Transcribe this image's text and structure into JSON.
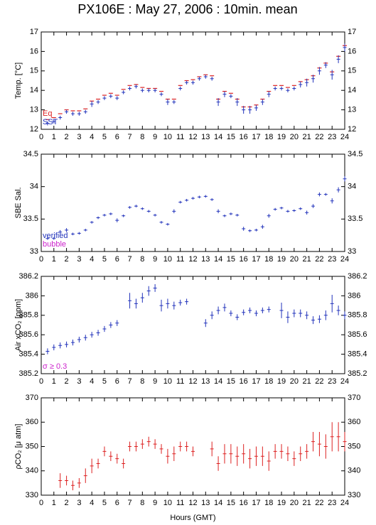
{
  "chart_data": [
    {
      "type": "errorbar",
      "title": "PX106E : May 27, 2006 : 10min. mean",
      "ylabel": "Temp. [°C]",
      "x": [
        0.5,
        1,
        1.5,
        2,
        2.5,
        3,
        3.5,
        4,
        4.5,
        5,
        5.5,
        6,
        6.5,
        7,
        7.5,
        8,
        8.5,
        9,
        9.5,
        10,
        10.5,
        11,
        11.5,
        12,
        12.5,
        13,
        13.5,
        14,
        14.5,
        15,
        15.5,
        16,
        16.5,
        17,
        17.5,
        18,
        18.5,
        19,
        19.5,
        20,
        20.5,
        21,
        21.5,
        22,
        22.5,
        23,
        23.5,
        24
      ],
      "series": [
        {
          "name": "Eq",
          "color": "#dd2222",
          "values": [
            12.5,
            12.6,
            12.8,
            13.0,
            12.95,
            12.95,
            13.05,
            13.45,
            13.55,
            13.75,
            13.85,
            13.75,
            14.05,
            14.25,
            14.3,
            14.15,
            14.1,
            14.1,
            13.95,
            13.55,
            13.55,
            14.25,
            14.5,
            14.55,
            14.7,
            14.8,
            14.75,
            13.55,
            13.95,
            13.85,
            13.55,
            13.15,
            13.15,
            13.25,
            13.55,
            13.95,
            14.25,
            14.25,
            14.15,
            14.25,
            14.45,
            14.55,
            14.75,
            15.15,
            15.4,
            14.95,
            15.75,
            16.3
          ]
        },
        {
          "name": "SST",
          "color": "#2233bb",
          "values": [
            12.3,
            12.4,
            12.6,
            12.9,
            12.8,
            12.8,
            12.9,
            13.3,
            13.4,
            13.6,
            13.7,
            13.6,
            13.9,
            14.1,
            14.2,
            14.0,
            14.0,
            14.0,
            13.8,
            13.4,
            13.4,
            14.1,
            14.4,
            14.4,
            14.6,
            14.7,
            14.6,
            13.4,
            13.8,
            13.7,
            13.4,
            13.0,
            13.0,
            13.1,
            13.4,
            13.8,
            14.1,
            14.1,
            14.0,
            14.1,
            14.3,
            14.4,
            14.6,
            15.0,
            15.3,
            14.8,
            15.6,
            16.2
          ],
          "errors": [
            0.1,
            0.1,
            0.1,
            0.1,
            0.1,
            0.1,
            0.1,
            0.15,
            0.1,
            0.1,
            0.1,
            0.1,
            0.1,
            0.1,
            0.1,
            0.1,
            0.1,
            0.1,
            0.1,
            0.15,
            0.1,
            0.1,
            0.1,
            0.1,
            0.1,
            0.1,
            0.1,
            0.2,
            0.15,
            0.1,
            0.2,
            0.2,
            0.2,
            0.15,
            0.15,
            0.15,
            0.1,
            0.1,
            0.1,
            0.1,
            0.15,
            0.2,
            0.2,
            0.2,
            0.15,
            0.25,
            0.2,
            0.2
          ]
        }
      ],
      "xlim": [
        0,
        24
      ],
      "xticks": [
        0,
        1,
        2,
        3,
        4,
        5,
        6,
        7,
        8,
        9,
        10,
        11,
        12,
        13,
        14,
        15,
        16,
        17,
        18,
        19,
        20,
        21,
        22,
        23,
        24
      ],
      "ylim": [
        12,
        17
      ],
      "yticks": [
        12,
        13,
        14,
        15,
        16,
        17
      ]
    },
    {
      "type": "errorbar",
      "ylabel": "SBE Sal.",
      "x": [
        0.5,
        1,
        1.5,
        2,
        2.5,
        3,
        3.5,
        4,
        4.5,
        5,
        5.5,
        6,
        6.5,
        7,
        7.5,
        8,
        8.5,
        9,
        9.5,
        10,
        10.5,
        11,
        11.5,
        12,
        12.5,
        13,
        13.5,
        14,
        14.5,
        15,
        15.5,
        16,
        16.5,
        17,
        17.5,
        18,
        18.5,
        19,
        19.5,
        20,
        20.5,
        21,
        21.5,
        22,
        22.5,
        23,
        23.5,
        24
      ],
      "series": [
        {
          "name": "verified",
          "color": "#2233bb",
          "values": [
            33.2,
            33.2,
            33.3,
            33.33,
            33.27,
            33.28,
            33.33,
            33.45,
            33.52,
            33.56,
            33.58,
            33.48,
            33.55,
            33.68,
            33.7,
            33.66,
            33.62,
            33.56,
            33.45,
            33.42,
            33.62,
            33.76,
            33.79,
            33.82,
            33.84,
            33.85,
            33.8,
            33.62,
            33.55,
            33.58,
            33.56,
            33.35,
            33.32,
            33.33,
            33.38,
            33.55,
            33.65,
            33.67,
            33.62,
            33.63,
            33.66,
            33.6,
            33.7,
            33.88,
            33.88,
            33.78,
            33.95,
            34.12
          ],
          "errors": [
            0.02,
            0.02,
            0.03,
            0.03,
            0.02,
            0.02,
            0.02,
            0.02,
            0.02,
            0.02,
            0.02,
            0.03,
            0.02,
            0.02,
            0.02,
            0.02,
            0.02,
            0.02,
            0.02,
            0.02,
            0.03,
            0.02,
            0.02,
            0.02,
            0.02,
            0.02,
            0.02,
            0.03,
            0.02,
            0.02,
            0.02,
            0.03,
            0.02,
            0.02,
            0.03,
            0.03,
            0.02,
            0.02,
            0.02,
            0.02,
            0.02,
            0.03,
            0.03,
            0.03,
            0.02,
            0.04,
            0.04,
            0.04
          ]
        }
      ],
      "annotations": [
        {
          "text": "bubble",
          "color": "#cc22cc"
        }
      ],
      "xlim": [
        0,
        24
      ],
      "xticks": [
        0,
        1,
        2,
        3,
        4,
        5,
        6,
        7,
        8,
        9,
        10,
        11,
        12,
        13,
        14,
        15,
        16,
        17,
        18,
        19,
        20,
        21,
        22,
        23,
        24
      ],
      "ylim": [
        33,
        34.5
      ],
      "yticks": [
        33,
        33.5,
        34,
        34.5
      ]
    },
    {
      "type": "errorbar",
      "ylabel": "Air xCO₂ [ppm]",
      "x": [
        0.5,
        1,
        1.5,
        2,
        2.5,
        3,
        3.5,
        4,
        4.5,
        5,
        5.5,
        6,
        6.5,
        7,
        7.5,
        8,
        8.5,
        9,
        9.5,
        10,
        10.5,
        11,
        11.5,
        12,
        12.5,
        13,
        13.5,
        14,
        14.5,
        15,
        15.5,
        16,
        16.5,
        17,
        17.5,
        18,
        18.5,
        19,
        19.5,
        20,
        20.5,
        21,
        21.5,
        22,
        22.5,
        23,
        23.5,
        24
      ],
      "series": [
        {
          "name": null,
          "color": "#2233bb",
          "values": [
            385.43,
            385.47,
            385.49,
            385.5,
            385.52,
            385.55,
            385.57,
            385.6,
            385.62,
            385.66,
            385.7,
            385.72,
            null,
            385.95,
            385.92,
            385.98,
            386.05,
            386.08,
            385.9,
            385.92,
            385.9,
            385.93,
            385.94,
            null,
            null,
            385.72,
            385.8,
            385.85,
            385.88,
            385.82,
            385.78,
            385.83,
            385.85,
            385.82,
            385.85,
            385.86,
            null,
            385.85,
            385.78,
            385.82,
            385.82,
            385.8,
            385.75,
            385.76,
            385.8,
            385.92,
            385.85,
            385.8
          ],
          "errors": [
            0.03,
            0.03,
            0.03,
            0.03,
            0.03,
            0.03,
            0.03,
            0.03,
            0.03,
            0.03,
            0.03,
            0.03,
            null,
            0.08,
            0.05,
            0.05,
            0.05,
            0.04,
            0.06,
            0.05,
            0.04,
            0.03,
            0.03,
            null,
            null,
            0.04,
            0.04,
            0.04,
            0.04,
            0.03,
            0.03,
            0.03,
            0.03,
            0.03,
            0.03,
            0.03,
            null,
            0.08,
            0.06,
            0.04,
            0.04,
            0.04,
            0.04,
            0.04,
            0.05,
            0.09,
            0.05,
            0.04
          ]
        }
      ],
      "annotations": [
        {
          "text": "σ ≥ 0.3",
          "color": "#cc22cc"
        }
      ],
      "xlim": [
        0,
        24
      ],
      "xticks": [
        0,
        1,
        2,
        3,
        4,
        5,
        6,
        7,
        8,
        9,
        10,
        11,
        12,
        13,
        14,
        15,
        16,
        17,
        18,
        19,
        20,
        21,
        22,
        23,
        24
      ],
      "ylim": [
        385.2,
        386.2
      ],
      "yticks": [
        385.2,
        385.4,
        385.6,
        385.8,
        386,
        386.2
      ]
    },
    {
      "type": "errorbar",
      "ylabel": "ρCO₂ [μ atm]",
      "xlabel": "Hours (GMT)",
      "x": [
        0.5,
        1,
        1.5,
        2,
        2.5,
        3,
        3.5,
        4,
        4.5,
        5,
        5.5,
        6,
        6.5,
        7,
        7.5,
        8,
        8.5,
        9,
        9.5,
        10,
        10.5,
        11,
        11.5,
        12,
        12.5,
        13,
        13.5,
        14,
        14.5,
        15,
        15.5,
        16,
        16.5,
        17,
        17.5,
        18,
        18.5,
        19,
        19.5,
        20,
        20.5,
        21,
        21.5,
        22,
        22.5,
        23,
        23.5,
        24
      ],
      "series": [
        {
          "name": null,
          "color": "#dd2222",
          "values": [
            null,
            null,
            336,
            336,
            334,
            335,
            338,
            342,
            343,
            348,
            346,
            345,
            343,
            350,
            350,
            351,
            352,
            351,
            349,
            346,
            347,
            350,
            350,
            348,
            null,
            null,
            349,
            343,
            347,
            347,
            346,
            347,
            345,
            346,
            346,
            344,
            348,
            348,
            347,
            345,
            347,
            348,
            352,
            351,
            350,
            354,
            354,
            352
          ],
          "errors": [
            null,
            null,
            3,
            2,
            2,
            2,
            3,
            3,
            2,
            2,
            2,
            2,
            2,
            2,
            2,
            2,
            2,
            2,
            2,
            3,
            3,
            2,
            2,
            2,
            null,
            null,
            3,
            3,
            4,
            4,
            4,
            4,
            4,
            4,
            4,
            4,
            3,
            3,
            3,
            3,
            3,
            3,
            4,
            5,
            5,
            6,
            6,
            4
          ]
        }
      ],
      "xlim": [
        0,
        24
      ],
      "xticks": [
        0,
        1,
        2,
        3,
        4,
        5,
        6,
        7,
        8,
        9,
        10,
        11,
        12,
        13,
        14,
        15,
        16,
        17,
        18,
        19,
        20,
        21,
        22,
        23,
        24
      ],
      "ylim": [
        330,
        370
      ],
      "yticks": [
        330,
        340,
        350,
        360,
        370
      ]
    }
  ]
}
